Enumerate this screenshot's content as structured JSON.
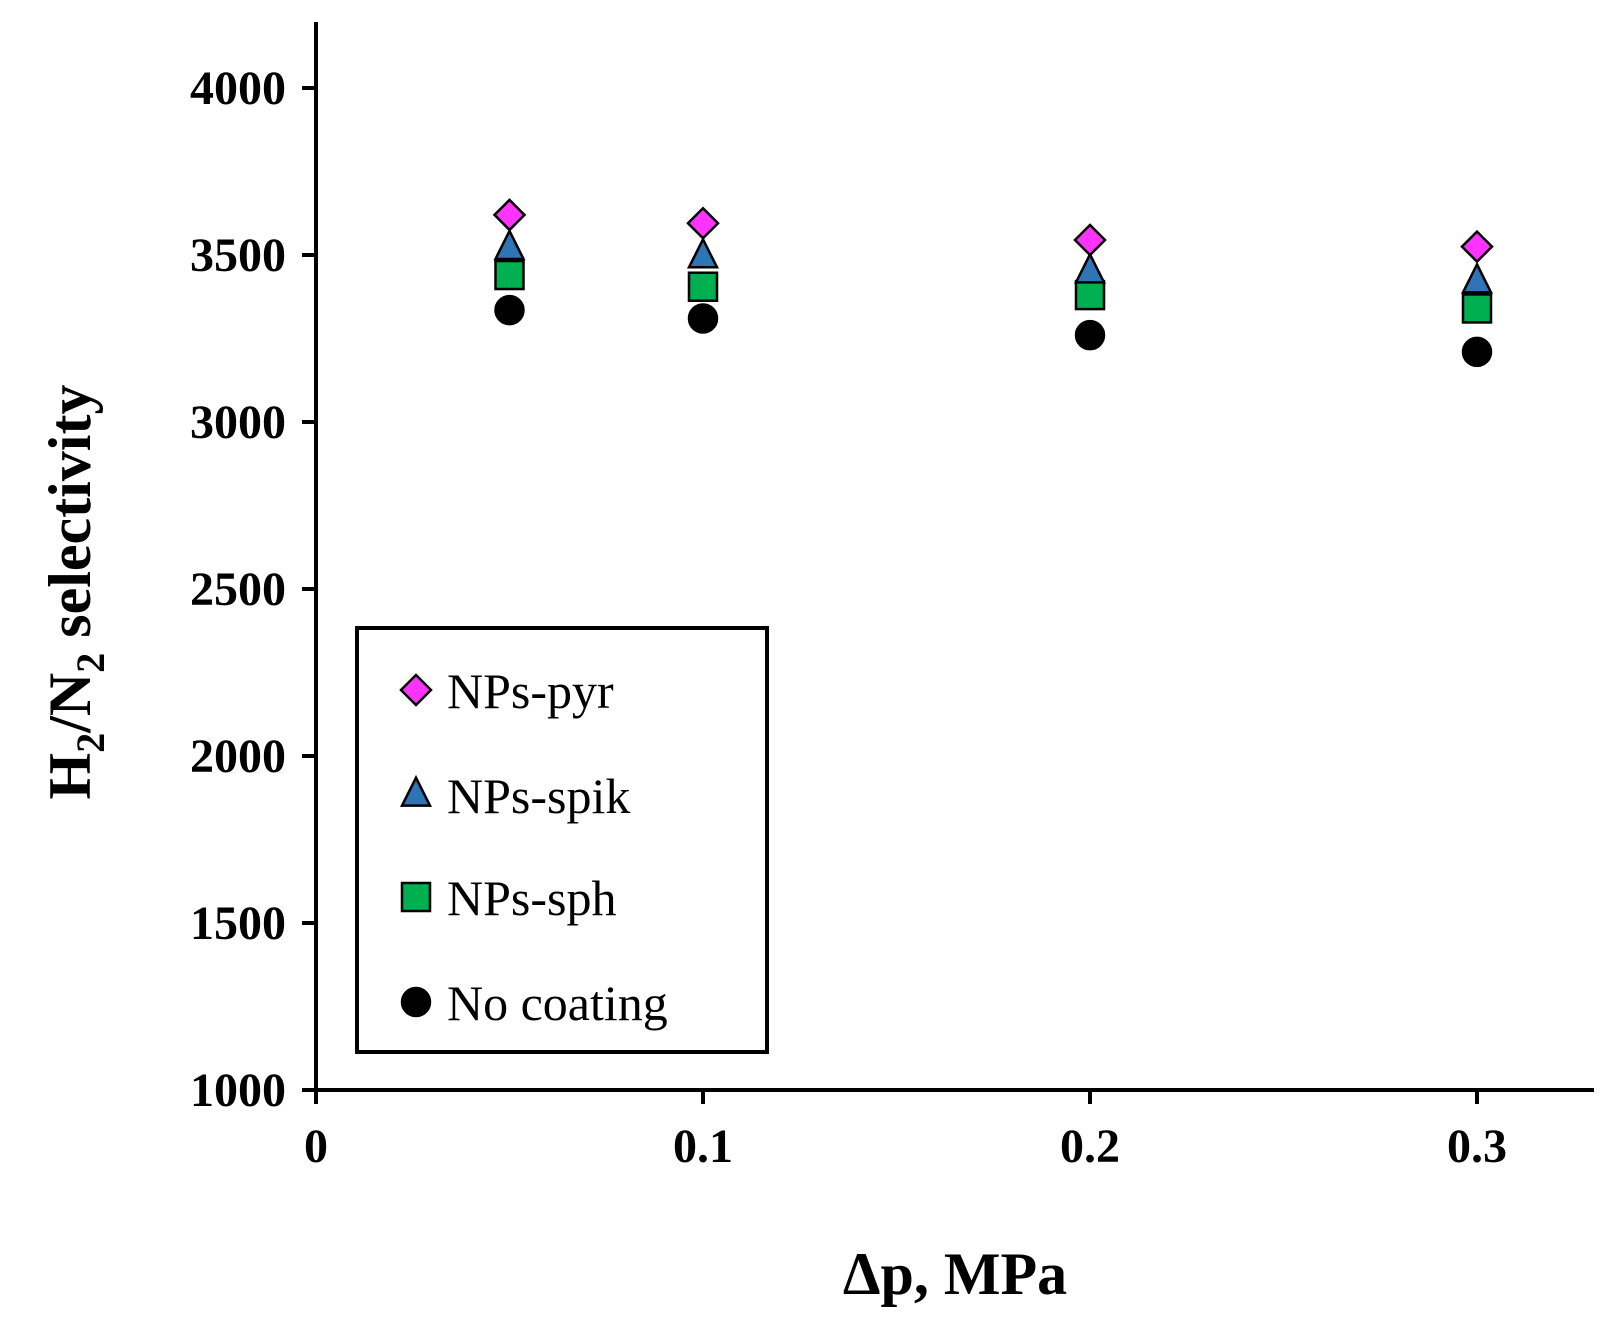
{
  "chart_data": {
    "type": "scatter",
    "title": "",
    "xlabel": "Δp, MPa",
    "ylabel": {
      "parts": [
        "H",
        "2",
        "/N",
        "2",
        " selectivity"
      ],
      "full": "H2/N2 selectivity"
    },
    "xlim": [
      0,
      0.33
    ],
    "ylim": [
      1000,
      4200
    ],
    "x_ticks": [
      0,
      0.1,
      0.2,
      0.3
    ],
    "x_tick_labels": [
      "0",
      "0.1",
      "0.2",
      "0.3"
    ],
    "y_ticks": [
      1000,
      1500,
      2000,
      2500,
      3000,
      3500,
      4000
    ],
    "y_tick_labels": [
      "1000",
      "1500",
      "2000",
      "2500",
      "3000",
      "3500",
      "4000"
    ],
    "grid": false,
    "legend_position": "bottom-left",
    "series": [
      {
        "name": "NPs-pyr",
        "marker": "diamond",
        "color": "#ff33ff",
        "x": [
          0.05,
          0.1,
          0.2,
          0.3
        ],
        "y": [
          3620,
          3595,
          3545,
          3525
        ]
      },
      {
        "name": "NPs-spik",
        "marker": "triangle",
        "color": "#2e75b6",
        "x": [
          0.05,
          0.1,
          0.2,
          0.3
        ],
        "y": [
          3520,
          3495,
          3450,
          3420
        ]
      },
      {
        "name": "NPs-sph",
        "marker": "square",
        "color": "#00b050",
        "x": [
          0.05,
          0.1,
          0.2,
          0.3
        ],
        "y": [
          3440,
          3405,
          3380,
          3340
        ]
      },
      {
        "name": "No coating",
        "marker": "circle",
        "color": "#000000",
        "x": [
          0.05,
          0.1,
          0.2,
          0.3
        ],
        "y": [
          3335,
          3310,
          3260,
          3210
        ]
      }
    ]
  }
}
